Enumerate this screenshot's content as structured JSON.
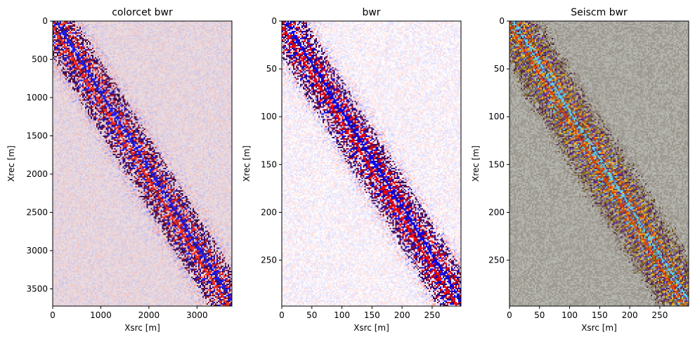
{
  "chart_data": [
    {
      "type": "heatmap",
      "title": "colorcet bwr",
      "xlabel": "Xsrc [m]",
      "ylabel": "Xrec [m]",
      "xlim": [
        0,
        3725
      ],
      "ylim": [
        3725,
        0
      ],
      "xticks": [
        0,
        1000,
        2000,
        3000
      ],
      "yticks": [
        0,
        500,
        1000,
        1500,
        2000,
        2500,
        3000,
        3500
      ],
      "colormap": {
        "negative": "#1a1aff",
        "zero": "#ebdfe2",
        "positive": "#ff2a1a",
        "mid_dark": "#3a0a3a"
      },
      "diagonal": {
        "start": [
          0,
          0
        ],
        "end": [
          3725,
          3725
        ]
      }
    },
    {
      "type": "heatmap",
      "title": "bwr",
      "xlabel": "Xsrc [m]",
      "ylabel": "Xrec [m]",
      "xlim": [
        0,
        298
      ],
      "ylim": [
        298,
        0
      ],
      "xticks": [
        0,
        50,
        100,
        150,
        200,
        250
      ],
      "yticks": [
        0,
        50,
        100,
        150,
        200,
        250
      ],
      "colormap": {
        "negative": "#0000ff",
        "zero": "#ffffff",
        "positive": "#ff0000",
        "mid_dark": "#3c1050"
      },
      "diagonal": {
        "start": [
          0,
          0
        ],
        "end": [
          298,
          298
        ]
      }
    },
    {
      "type": "heatmap",
      "title": "Seiscm bwr",
      "xlabel": "Xsrc [m]",
      "ylabel": "Xrec [m]",
      "xlim": [
        0,
        298
      ],
      "ylim": [
        298,
        0
      ],
      "xticks": [
        0,
        50,
        100,
        150,
        200,
        250
      ],
      "yticks": [
        0,
        50,
        100,
        150,
        200,
        250
      ],
      "colormap": {
        "negative": "#5ad2f0",
        "zero": "#b4b4ae",
        "positive": "#e13c0a",
        "mid_dark": "#3c2814",
        "accent": "#ffd21e"
      },
      "diagonal": {
        "start": [
          0,
          0
        ],
        "end": [
          298,
          298
        ]
      }
    }
  ]
}
